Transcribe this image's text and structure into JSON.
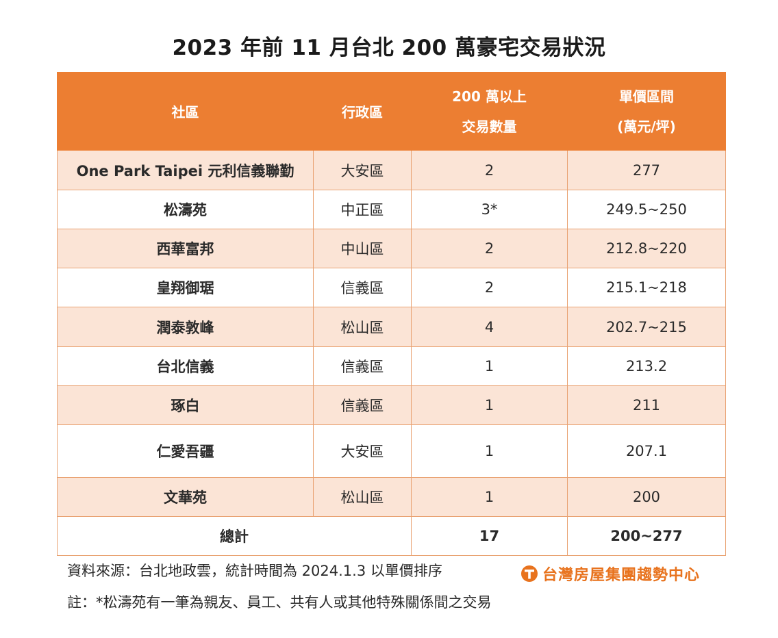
{
  "title": "2023 年前 11 月台北 200 萬豪宅交易狀況",
  "table": {
    "headers": {
      "community": "社區",
      "district": "行政區",
      "count_line1": "200 萬以上",
      "count_line2": "交易數量",
      "price_line1": "單價區間",
      "price_line2": "(萬元/坪)"
    },
    "rows": [
      {
        "community": "One Park Taipei 元利信義聯勤",
        "district": "大安區",
        "count": "2",
        "price": "277"
      },
      {
        "community": "松濤苑",
        "district": "中正區",
        "count": "3*",
        "price": "249.5~250"
      },
      {
        "community": "西華富邦",
        "district": "中山區",
        "count": "2",
        "price": "212.8~220"
      },
      {
        "community": "皇翔御琚",
        "district": "信義區",
        "count": "2",
        "price": "215.1~218"
      },
      {
        "community": "潤泰敦峰",
        "district": "松山區",
        "count": "4",
        "price": "202.7~215"
      },
      {
        "community": "台北信義",
        "district": "信義區",
        "count": "1",
        "price": "213.2"
      },
      {
        "community": "琢白",
        "district": "信義區",
        "count": "1",
        "price": "211"
      },
      {
        "community": "仁愛吾疆",
        "district": "大安區",
        "count": "1",
        "price": "207.1"
      },
      {
        "community": "文華苑",
        "district": "松山區",
        "count": "1",
        "price": "200"
      }
    ],
    "total": {
      "label": "總計",
      "count": "17",
      "price": "200~277"
    }
  },
  "source_note": "資料來源：台北地政雲，統計時間為 2024.1.3 以單價排序",
  "footnote": "註：*松濤苑有一筆為親友、員工、共有人或其他特殊關係間之交易",
  "logo_text": "台灣房屋集團趨勢中心",
  "colors": {
    "header": "#ec7e32",
    "shaded_row": "#fbe4d6",
    "logo": "#e8731e"
  }
}
